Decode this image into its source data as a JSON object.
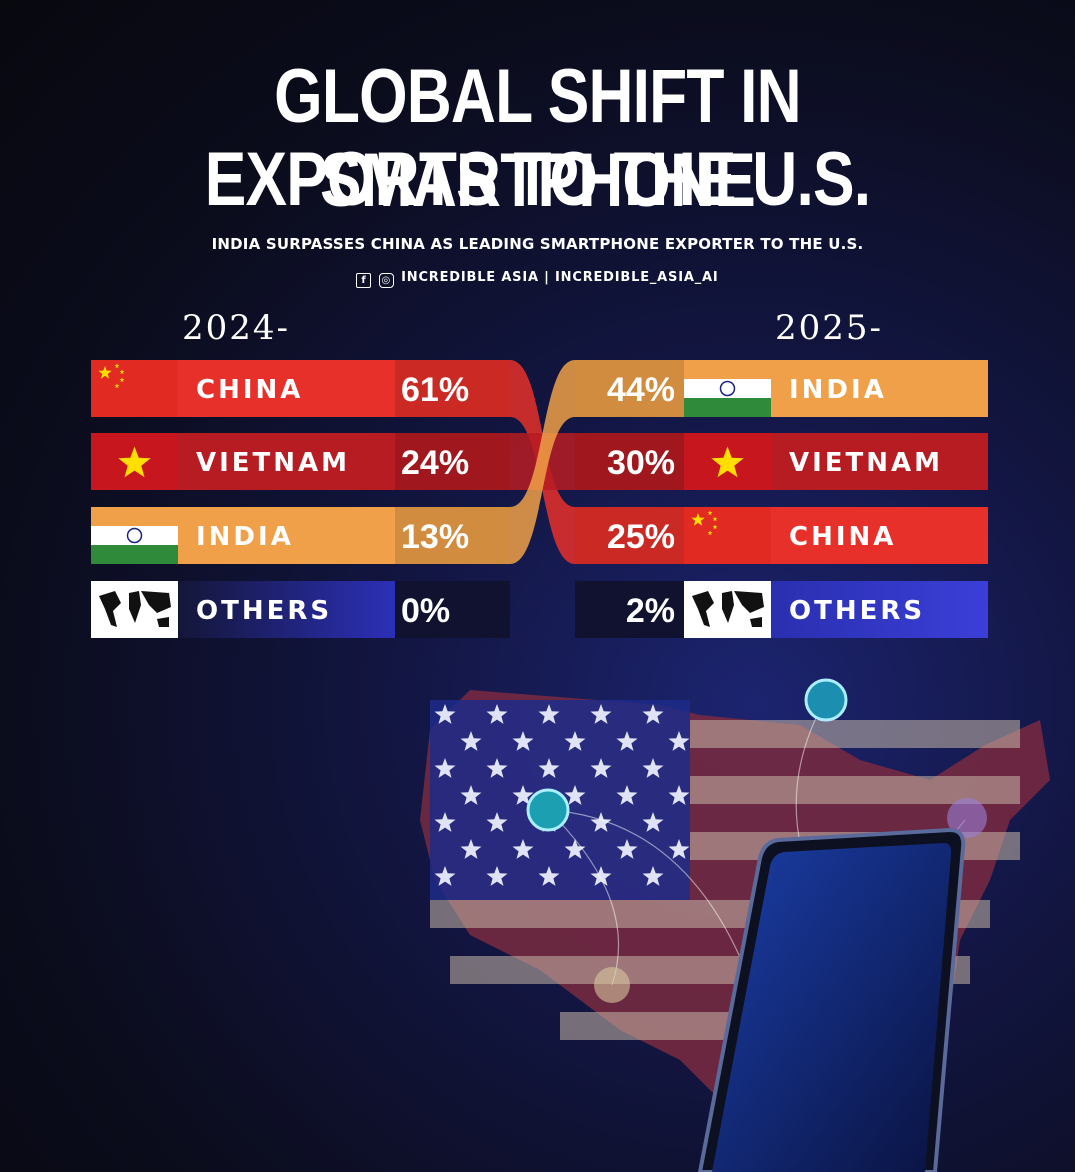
{
  "header": {
    "title_line1": "GLOBAL SHIFT IN SMARTPHONE",
    "title_line2": "EXPORTS TO THE U.S.",
    "subtitle": "INDIA SURPASSES CHINA AS LEADING SMARTPHONE EXPORTER TO THE U.S.",
    "social": "INCREDIBLE ASIA | INCREDIBLE_ASIA_AI",
    "social_icons": [
      "facebook-icon",
      "instagram-icon"
    ]
  },
  "colors": {
    "china": "#e8302a",
    "vietnam": "#b71c22",
    "india": "#f0a048",
    "others": "#2a2fb0"
  },
  "chart_data": {
    "type": "table",
    "columns": [
      "2024-",
      "2025-"
    ],
    "left": [
      {
        "country": "CHINA",
        "value": 61,
        "label": "61%"
      },
      {
        "country": "VIETNAM",
        "value": 24,
        "label": "24%"
      },
      {
        "country": "INDIA",
        "value": 13,
        "label": "13%"
      },
      {
        "country": "OTHERS",
        "value": 0,
        "label": "0%"
      }
    ],
    "right": [
      {
        "country": "INDIA",
        "value": 44,
        "label": "44%"
      },
      {
        "country": "VIETNAM",
        "value": 30,
        "label": "30%"
      },
      {
        "country": "CHINA",
        "value": 25,
        "label": "25%"
      },
      {
        "country": "OTHERS",
        "value": 2,
        "label": "2%"
      }
    ]
  }
}
